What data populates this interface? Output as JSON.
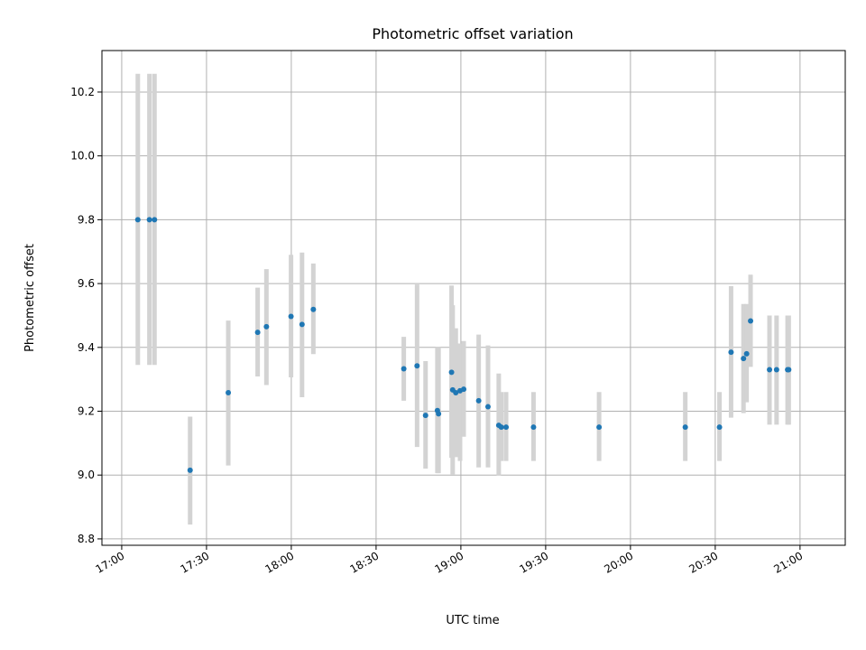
{
  "chart_data": {
    "type": "scatter",
    "title": "Photometric offset variation",
    "xlabel": "UTC time",
    "ylabel": "Photometric offset",
    "x_ticks": [
      "17:00",
      "17:30",
      "18:00",
      "18:30",
      "19:00",
      "19:30",
      "20:00",
      "20:30",
      "21:00"
    ],
    "x_tick_minutes": [
      1020,
      1050,
      1080,
      1110,
      1140,
      1170,
      1200,
      1230,
      1260
    ],
    "y_ticks": [
      "8.8",
      "9.0",
      "9.2",
      "9.4",
      "9.6",
      "9.8",
      "10.0",
      "10.2"
    ],
    "y_tick_values": [
      8.8,
      9.0,
      9.2,
      9.4,
      9.6,
      9.8,
      10.0,
      10.2
    ],
    "xlim_minutes": [
      1013,
      1276
    ],
    "ylim": [
      8.78,
      10.33
    ],
    "grid": true,
    "point_color": "#1f77b4",
    "errorbar_color": "#d3d3d3",
    "series": [
      {
        "points": [
          {
            "t": 1025.7,
            "y": 9.8,
            "lo": 9.345,
            "hi": 10.257
          },
          {
            "t": 1029.8,
            "y": 9.8,
            "lo": 9.345,
            "hi": 10.257
          },
          {
            "t": 1031.6,
            "y": 9.8,
            "lo": 9.345,
            "hi": 10.257
          },
          {
            "t": 1044.2,
            "y": 9.015,
            "lo": 8.845,
            "hi": 9.183
          },
          {
            "t": 1057.7,
            "y": 9.258,
            "lo": 9.03,
            "hi": 9.484
          },
          {
            "t": 1068.1,
            "y": 9.447,
            "lo": 9.309,
            "hi": 9.587
          },
          {
            "t": 1071.2,
            "y": 9.465,
            "lo": 9.282,
            "hi": 9.645
          },
          {
            "t": 1079.9,
            "y": 9.497,
            "lo": 9.306,
            "hi": 9.69
          },
          {
            "t": 1083.8,
            "y": 9.472,
            "lo": 9.244,
            "hi": 9.697
          },
          {
            "t": 1087.8,
            "y": 9.519,
            "lo": 9.379,
            "hi": 9.663
          },
          {
            "t": 1119.8,
            "y": 9.333,
            "lo": 9.233,
            "hi": 9.433
          },
          {
            "t": 1124.5,
            "y": 9.342,
            "lo": 9.088,
            "hi": 9.597
          },
          {
            "t": 1127.5,
            "y": 9.187,
            "lo": 9.02,
            "hi": 9.357
          },
          {
            "t": 1131.7,
            "y": 9.202,
            "lo": 9.006,
            "hi": 9.4
          },
          {
            "t": 1132.1,
            "y": 9.192,
            "lo": 9.006,
            "hi": 9.4
          },
          {
            "t": 1136.7,
            "y": 9.322,
            "lo": 9.054,
            "hi": 9.594
          },
          {
            "t": 1137.1,
            "y": 9.267,
            "lo": 9.002,
            "hi": 9.532
          },
          {
            "t": 1138.2,
            "y": 9.258,
            "lo": 9.056,
            "hi": 9.46
          },
          {
            "t": 1139.7,
            "y": 9.264,
            "lo": 9.044,
            "hi": 9.412
          },
          {
            "t": 1141.0,
            "y": 9.269,
            "lo": 9.12,
            "hi": 9.42
          },
          {
            "t": 1146.3,
            "y": 9.233,
            "lo": 9.024,
            "hi": 9.44
          },
          {
            "t": 1149.6,
            "y": 9.214,
            "lo": 9.024,
            "hi": 9.406
          },
          {
            "t": 1153.4,
            "y": 9.156,
            "lo": 8.998,
            "hi": 9.318
          },
          {
            "t": 1154.3,
            "y": 9.15,
            "lo": 9.044,
            "hi": 9.26
          },
          {
            "t": 1156.0,
            "y": 9.15,
            "lo": 9.044,
            "hi": 9.26
          },
          {
            "t": 1165.7,
            "y": 9.15,
            "lo": 9.044,
            "hi": 9.26
          },
          {
            "t": 1188.9,
            "y": 9.15,
            "lo": 9.044,
            "hi": 9.26
          },
          {
            "t": 1219.4,
            "y": 9.15,
            "lo": 9.044,
            "hi": 9.26
          },
          {
            "t": 1231.5,
            "y": 9.15,
            "lo": 9.044,
            "hi": 9.26
          },
          {
            "t": 1235.6,
            "y": 9.385,
            "lo": 9.18,
            "hi": 9.592
          },
          {
            "t": 1240.0,
            "y": 9.365,
            "lo": 9.194,
            "hi": 9.536
          },
          {
            "t": 1241.1,
            "y": 9.38,
            "lo": 9.228,
            "hi": 9.536
          },
          {
            "t": 1242.5,
            "y": 9.483,
            "lo": 9.339,
            "hi": 9.628
          },
          {
            "t": 1249.2,
            "y": 9.33,
            "lo": 9.158,
            "hi": 9.5
          },
          {
            "t": 1251.7,
            "y": 9.33,
            "lo": 9.158,
            "hi": 9.5
          },
          {
            "t": 1255.6,
            "y": 9.33,
            "lo": 9.158,
            "hi": 9.5
          },
          {
            "t": 1256.0,
            "y": 9.33,
            "lo": 9.158,
            "hi": 9.5
          }
        ]
      }
    ]
  }
}
